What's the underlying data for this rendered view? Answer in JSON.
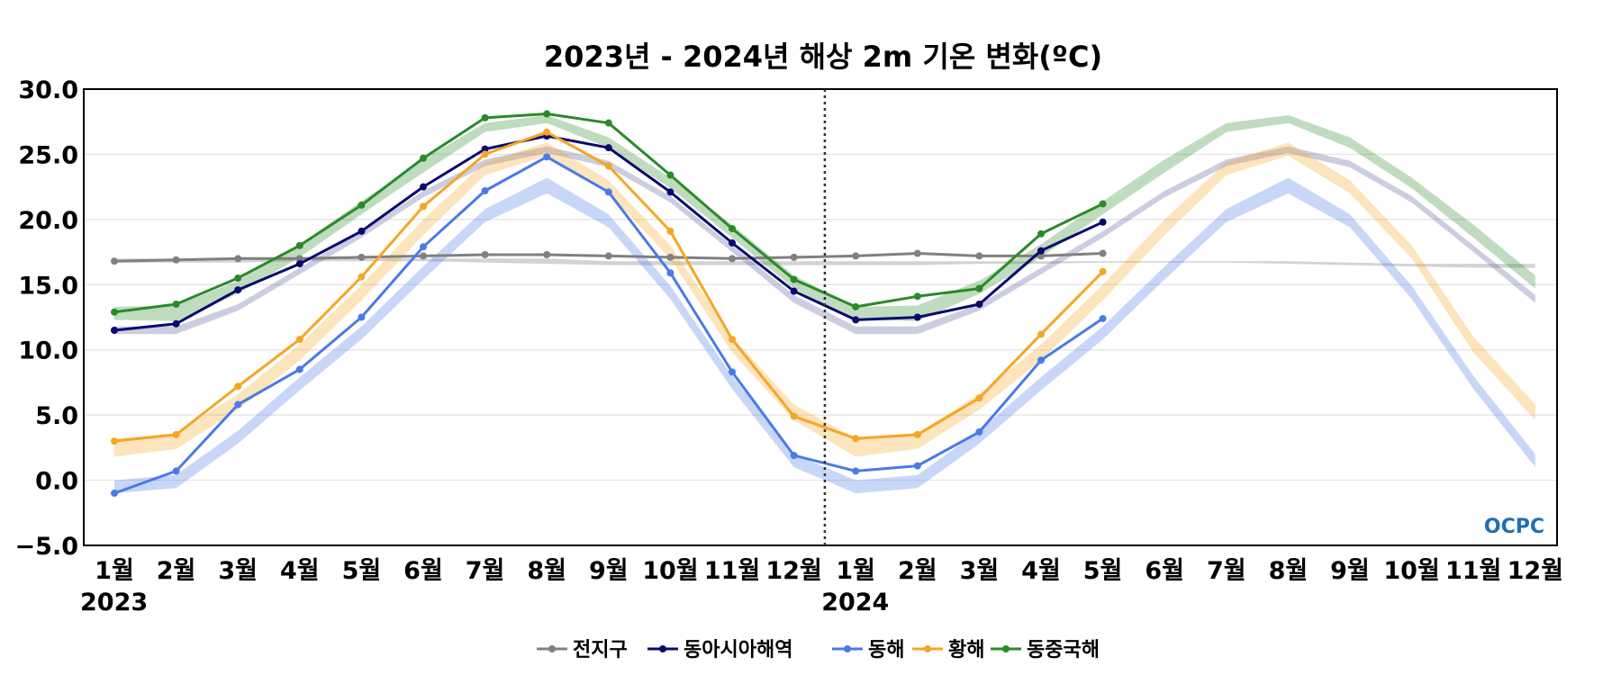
{
  "chart_data": {
    "type": "line",
    "title": "2023년 - 2024년 해상 2m 기온 변화(ºC)",
    "xlabel": "",
    "ylabel": "",
    "ylim": [
      -5,
      30
    ],
    "yticks": [
      30.0,
      25.0,
      20.0,
      15.0,
      10.0,
      5.0,
      0.0,
      -5.0
    ],
    "ytick_labels": [
      "30.0",
      "25.0",
      "20.0",
      "15.0",
      "10.0",
      "5.0",
      "0.0",
      "−5.0"
    ],
    "x_month_labels": [
      "1월",
      "2월",
      "3월",
      "4월",
      "5월",
      "6월",
      "7월",
      "8월",
      "9월",
      "10월",
      "11월",
      "12월",
      "1월",
      "2월",
      "3월",
      "4월",
      "5월",
      "6월",
      "7월",
      "8월",
      "9월",
      "10월",
      "11월",
      "12월"
    ],
    "year_labels": [
      {
        "label": "2023",
        "index": 0
      },
      {
        "label": "2024",
        "index": 12
      }
    ],
    "divider_index": 11.5,
    "grid": true,
    "legend_position": "bottom-center",
    "logo_text": "OCPC",
    "series": [
      {
        "name": "전지구",
        "color": "#808080",
        "values": [
          16.8,
          16.9,
          17.0,
          17.0,
          17.1,
          17.2,
          17.3,
          17.3,
          17.2,
          17.1,
          17.0,
          17.1,
          17.2,
          17.4,
          17.2,
          17.2,
          17.4
        ],
        "climatology_upper": [
          17.0,
          17.0,
          17.0,
          17.0,
          17.0,
          17.0,
          17.0,
          17.0,
          16.8,
          16.8,
          16.8,
          16.8,
          16.8,
          16.8,
          16.8,
          16.8,
          16.8,
          16.8,
          16.8,
          16.8,
          16.7,
          16.6,
          16.6,
          16.6
        ],
        "climatology_lower": [
          16.7,
          16.7,
          16.7,
          16.8,
          16.8,
          16.8,
          16.7,
          16.6,
          16.5,
          16.5,
          16.5,
          16.5,
          16.5,
          16.5,
          16.6,
          16.6,
          16.7,
          16.7,
          16.7,
          16.6,
          16.5,
          16.4,
          16.3,
          16.3
        ]
      },
      {
        "name": "동아시아해역",
        "color": "#0a0a6e",
        "values": [
          11.5,
          12.0,
          14.6,
          16.6,
          19.1,
          22.5,
          25.4,
          26.4,
          25.5,
          22.1,
          18.2,
          14.5,
          12.3,
          12.5,
          13.5,
          17.6,
          19.8
        ],
        "climatology_upper": [
          11.8,
          11.8,
          13.5,
          16.3,
          19.1,
          22.2,
          24.6,
          25.6,
          24.5,
          21.8,
          18.0,
          14.2,
          11.8,
          11.8,
          13.5,
          16.3,
          19.1,
          22.2,
          24.6,
          25.6,
          24.5,
          21.8,
          18.0,
          14.2
        ],
        "climatology_lower": [
          11.2,
          11.2,
          13.0,
          15.8,
          18.6,
          21.7,
          24.1,
          25.1,
          24.0,
          21.3,
          17.5,
          13.6,
          11.2,
          11.2,
          13.0,
          15.8,
          18.6,
          21.7,
          24.1,
          25.1,
          24.0,
          21.3,
          17.5,
          13.6
        ]
      },
      {
        "name": "동해",
        "color": "#4a7ae8",
        "values": [
          -1.0,
          0.7,
          5.8,
          8.5,
          12.5,
          17.9,
          22.2,
          24.8,
          22.1,
          15.9,
          8.3,
          1.9,
          0.7,
          1.1,
          3.7,
          9.2,
          12.4
        ],
        "climatology_upper": [
          0.0,
          0.4,
          3.8,
          7.9,
          11.8,
          16.4,
          20.8,
          23.2,
          20.4,
          14.9,
          8.0,
          2.0,
          0.0,
          0.4,
          3.8,
          7.9,
          11.8,
          16.4,
          20.8,
          23.2,
          20.4,
          14.9,
          8.0,
          2.0
        ],
        "climatology_lower": [
          -1.0,
          -0.6,
          2.8,
          6.9,
          10.8,
          15.4,
          19.8,
          22.0,
          19.4,
          13.9,
          7.0,
          1.0,
          -1.0,
          -0.6,
          2.8,
          6.9,
          10.8,
          15.4,
          19.8,
          22.0,
          19.4,
          13.9,
          7.0,
          1.0
        ]
      },
      {
        "name": "황해",
        "color": "#f5a623",
        "values": [
          3.0,
          3.5,
          7.2,
          10.8,
          15.6,
          21.0,
          25.0,
          26.7,
          24.1,
          19.1,
          10.8,
          4.9,
          3.2,
          3.5,
          6.3,
          11.2,
          16.0
        ],
        "climatology_upper": [
          3.2,
          3.6,
          6.6,
          10.4,
          15.0,
          20.0,
          24.4,
          25.9,
          23.0,
          18.0,
          11.0,
          5.8,
          3.2,
          3.6,
          6.6,
          10.4,
          15.0,
          20.0,
          24.4,
          25.9,
          23.0,
          18.0,
          11.0,
          5.8
        ],
        "climatology_lower": [
          1.8,
          2.4,
          5.4,
          9.2,
          13.8,
          18.8,
          23.4,
          24.9,
          22.0,
          17.0,
          9.8,
          4.6,
          1.8,
          2.4,
          5.4,
          9.2,
          13.8,
          18.8,
          23.4,
          24.9,
          22.0,
          17.0,
          9.8,
          4.6
        ]
      },
      {
        "name": "동중국해",
        "color": "#2a8a2a",
        "values": [
          12.9,
          13.5,
          15.5,
          18.0,
          21.1,
          24.7,
          27.8,
          28.1,
          27.4,
          23.4,
          19.3,
          15.4,
          13.3,
          14.1,
          14.7,
          18.9,
          21.2
        ],
        "climatology_upper": [
          13.3,
          13.4,
          15.3,
          18.1,
          21.4,
          24.6,
          27.4,
          28.0,
          26.3,
          23.2,
          19.6,
          15.7,
          13.3,
          13.4,
          15.3,
          18.1,
          21.4,
          24.6,
          27.4,
          28.0,
          26.3,
          23.2,
          19.6,
          15.7
        ],
        "climatology_lower": [
          12.3,
          12.2,
          14.3,
          17.1,
          20.4,
          23.6,
          26.7,
          27.4,
          25.5,
          22.4,
          18.6,
          14.7,
          12.3,
          12.2,
          14.3,
          17.1,
          20.4,
          23.6,
          26.7,
          27.4,
          25.5,
          22.4,
          18.6,
          14.7
        ]
      }
    ]
  }
}
